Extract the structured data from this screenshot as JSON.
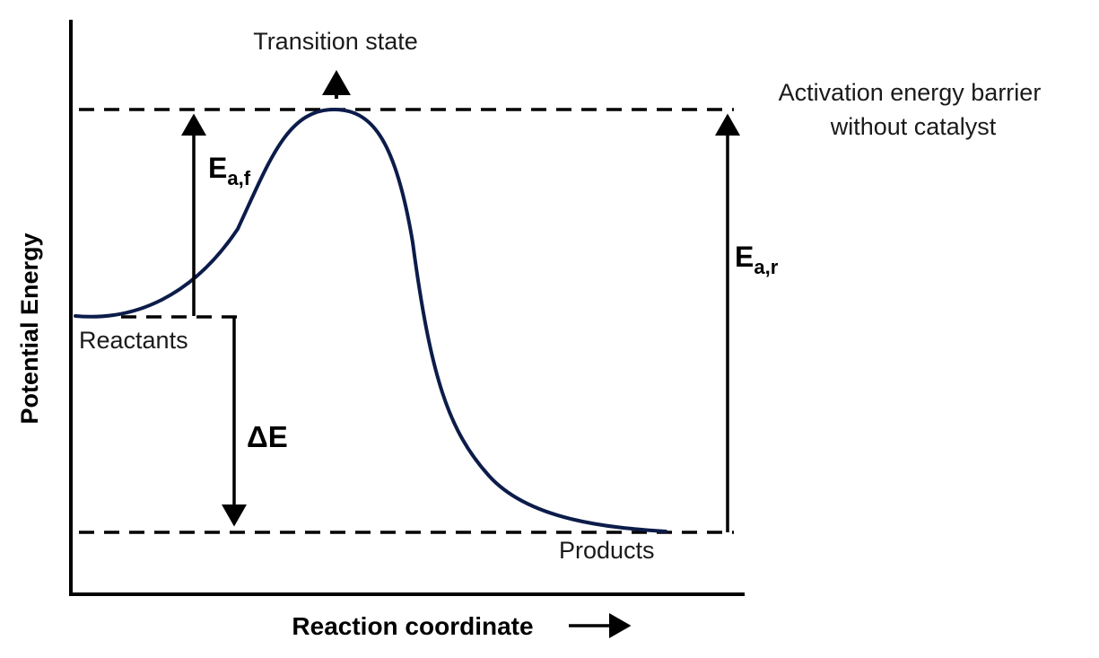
{
  "diagram": {
    "transition_state_label": "Transition state",
    "barrier_label_line1": "Activation energy barrier",
    "barrier_label_line2": "without catalyst",
    "ea_forward": {
      "main": "E",
      "sub": "a,f"
    },
    "ea_reverse": {
      "main": "E",
      "sub": "a,r"
    },
    "delta_e_label": "ΔE",
    "reactants_label": "Reactants",
    "products_label": "Products",
    "y_axis_label": "Potential Energy",
    "x_axis_label": "Reaction coordinate",
    "colors": {
      "curve": "#0c1c4a",
      "lines": "#000000",
      "text": "#1a1a1a"
    }
  }
}
